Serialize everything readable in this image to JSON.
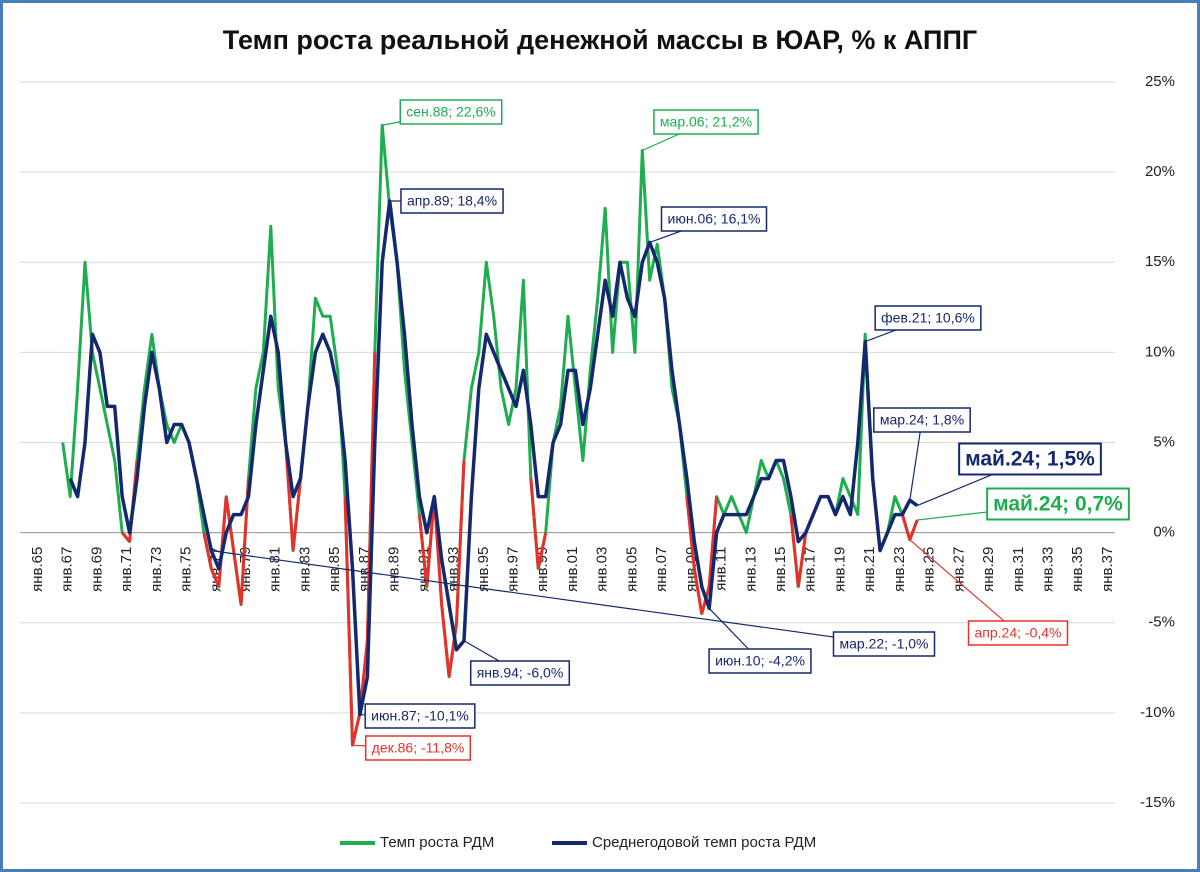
{
  "chart_data": {
    "type": "line",
    "title": "Темп роста реальной денежной массы в ЮАР, % к АППГ",
    "categories": [
      "янв.65",
      null,
      null,
      null,
      "янв.67",
      null,
      null,
      null,
      "янв.69",
      null,
      null,
      null,
      "янв.71",
      null,
      null,
      null,
      "янв.73",
      null,
      null,
      null,
      "янв.75",
      null,
      null,
      null,
      "янв.77",
      null,
      null,
      null,
      "янв.79",
      null,
      null,
      null,
      "янв.81",
      null,
      null,
      null,
      "янв.83",
      null,
      null,
      null,
      "янв.85",
      null,
      null,
      null,
      "янв.87",
      null,
      null,
      null,
      "янв.89",
      null,
      null,
      null,
      "янв.91",
      null,
      null,
      null,
      "янв.93",
      null,
      null,
      null,
      "янв.95",
      null,
      null,
      null,
      "янв.97",
      null,
      null,
      null,
      "янв.99",
      null,
      null,
      null,
      "янв.01",
      null,
      null,
      null,
      "янв.03",
      null,
      null,
      null,
      "янв.05",
      null,
      null,
      null,
      "янв.07",
      null,
      null,
      null,
      "янв.09",
      null,
      null,
      null,
      "янв.11",
      null,
      null,
      null,
      "янв.13",
      null,
      null,
      null,
      "янв.15",
      null,
      null,
      null,
      "янв.17",
      null,
      null,
      null,
      "янв.19",
      null,
      null,
      null,
      "янв.21",
      null,
      null,
      null,
      "янв.23",
      null,
      null,
      null,
      "янв.25",
      null,
      null,
      null,
      "янв.27",
      null,
      null,
      null,
      "янв.29",
      null,
      null,
      null,
      "янв.31",
      null,
      null,
      null,
      "янв.33",
      null,
      null,
      null,
      "янв.35",
      null,
      null,
      null,
      "янв.37"
    ],
    "series": [
      {
        "name": "Темп роста РДМ",
        "color": "#1fad4f",
        "negative_color": "#e8302a",
        "values": [
          null,
          null,
          null,
          null,
          5,
          2,
          8,
          15,
          10,
          8,
          6,
          4,
          0,
          -0.5,
          4,
          8,
          11,
          8,
          6,
          5,
          6,
          5,
          3,
          0,
          -2,
          -3,
          2,
          -1,
          -4,
          3,
          8,
          10,
          17,
          8,
          5,
          -1,
          3,
          7,
          13,
          12,
          12,
          9,
          2,
          -11.8,
          -10,
          -6,
          10,
          22.6,
          18,
          15,
          9,
          5,
          1,
          -3,
          2,
          -4,
          -8,
          -5,
          4,
          8,
          10,
          15,
          12,
          8,
          6,
          8,
          14,
          3,
          -2,
          0,
          5,
          7,
          12,
          8,
          4,
          9,
          13,
          18,
          10,
          15,
          15,
          10,
          21.2,
          14,
          16,
          13,
          8,
          6,
          2,
          -2,
          -4.5,
          -3,
          2,
          1,
          2,
          1,
          0,
          2,
          4,
          3,
          4,
          3,
          1,
          -3,
          0,
          1,
          2,
          2,
          1,
          3,
          2,
          1,
          11,
          3,
          -1,
          0,
          2,
          1,
          -0.4,
          0.7,
          null,
          null,
          null,
          null,
          null,
          null,
          null,
          null,
          null,
          null,
          null,
          null,
          null,
          null,
          null,
          null,
          null,
          null,
          null,
          null,
          null,
          null,
          null,
          null,
          null
        ]
      },
      {
        "name": "Среднегодовой темп роста РДМ",
        "color": "#14286e",
        "values": [
          null,
          null,
          null,
          null,
          null,
          3,
          2,
          5,
          11,
          10,
          7,
          7,
          2,
          0,
          3,
          7,
          10,
          8,
          5,
          6,
          6,
          5,
          3,
          1,
          -1,
          -2,
          0,
          1,
          1,
          2,
          6,
          9,
          12,
          10,
          5,
          2,
          3,
          7,
          10,
          11,
          10,
          8,
          4,
          -2,
          -10.1,
          -8,
          5,
          15,
          18.4,
          15,
          11,
          6,
          2,
          0,
          2,
          -1.5,
          -4,
          -6.5,
          -6.0,
          2,
          8,
          11,
          10,
          9,
          8,
          7,
          9,
          6,
          2,
          2,
          5,
          6,
          9,
          9,
          6,
          8,
          11,
          14,
          12,
          15,
          13,
          12,
          15,
          16.1,
          15,
          13,
          9,
          6,
          3,
          -0.5,
          -3,
          -4.2,
          0,
          1,
          1,
          1,
          1,
          2,
          3,
          3,
          4,
          4,
          2,
          -0.5,
          0,
          1,
          2,
          2,
          1,
          2,
          1,
          5,
          10.6,
          3,
          -1.0,
          0,
          1,
          1,
          1.8,
          1.5,
          null,
          null,
          null,
          null,
          null,
          null,
          null,
          null,
          null,
          null,
          null,
          null,
          null,
          null,
          null,
          null,
          null,
          null,
          null,
          null,
          null,
          null,
          null,
          null,
          null
        ]
      }
    ],
    "ylim": [
      -15,
      25
    ],
    "yticks": [
      {
        "value": -15,
        "label": "-15%"
      },
      {
        "value": -10,
        "label": "-10%"
      },
      {
        "value": -5,
        "label": "-5%"
      },
      {
        "value": 0,
        "label": "0%"
      },
      {
        "value": 5,
        "label": "5%"
      },
      {
        "value": 10,
        "label": "10%"
      },
      {
        "value": 15,
        "label": "15%"
      },
      {
        "value": 20,
        "label": "20%"
      },
      {
        "value": 25,
        "label": "25%"
      }
    ],
    "grid": true,
    "legend": "bottom",
    "annotations": [
      {
        "text": "сен.88; 22,6%",
        "series": 0,
        "value": 22.6,
        "color": "#1fad4f"
      },
      {
        "text": "мар.06; 21,2%",
        "series": 0,
        "value": 21.2,
        "color": "#1fad4f"
      },
      {
        "text": "дек.86; -11,8%",
        "series": 0,
        "value": -11.8,
        "color": "#e8302a"
      },
      {
        "text": "апр.24; -0,4%",
        "series": 0,
        "value": -0.4,
        "color": "#e8302a"
      },
      {
        "text": "май.24; 0,7%",
        "series": 0,
        "value": 0.7,
        "color": "#1fad4f"
      },
      {
        "text": "апр.89; 18,4%",
        "series": 1,
        "value": 18.4,
        "color": "#14286e"
      },
      {
        "text": "июн.06; 16,1%",
        "series": 1,
        "value": 16.1,
        "color": "#14286e"
      },
      {
        "text": "фев.21; 10,6%",
        "series": 1,
        "value": 10.6,
        "color": "#14286e"
      },
      {
        "text": "мар.24; 1,8%",
        "series": 1,
        "value": 1.8,
        "color": "#14286e"
      },
      {
        "text": "май.24; 1,5%",
        "series": 1,
        "value": 1.5,
        "color": "#14286e"
      },
      {
        "text": "июн.87; -10,1%",
        "series": 1,
        "value": -10.1,
        "color": "#14286e"
      },
      {
        "text": "янв.94; -6,0%",
        "series": 1,
        "value": -6.0,
        "color": "#14286e"
      },
      {
        "text": "июн.10; -4,2%",
        "series": 1,
        "value": -4.2,
        "color": "#14286e"
      },
      {
        "text": "мар.22; -1,0%",
        "series": 1,
        "value": -1.0,
        "color": "#14286e"
      }
    ]
  }
}
